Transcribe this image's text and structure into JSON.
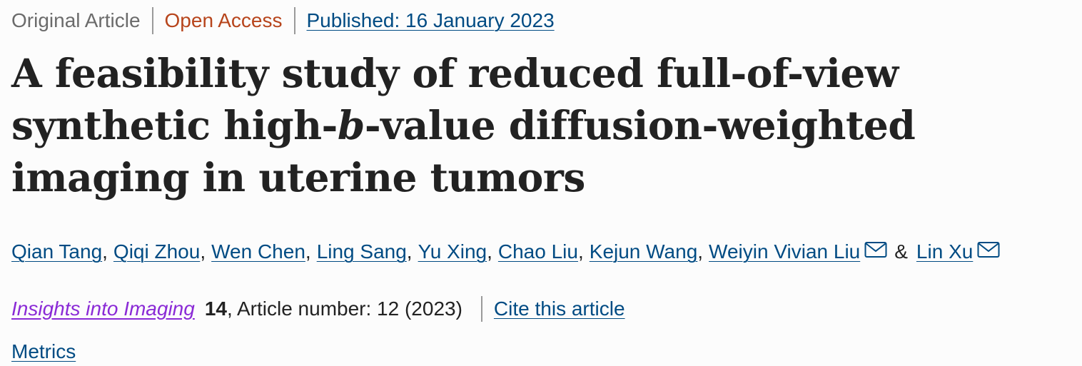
{
  "header": {
    "article_type": "Original Article",
    "access": "Open Access",
    "published": "Published: 16 January 2023"
  },
  "title": {
    "part1": "A feasibility study of reduced full-of-view synthetic high-",
    "italic": "b",
    "part2": "-value diffusion-weighted imaging in uterine tumors"
  },
  "authors": [
    {
      "name": "Qian Tang",
      "email": false
    },
    {
      "name": "Qiqi Zhou",
      "email": false
    },
    {
      "name": "Wen Chen",
      "email": false
    },
    {
      "name": "Ling Sang",
      "email": false
    },
    {
      "name": "Yu Xing",
      "email": false
    },
    {
      "name": "Chao Liu",
      "email": false
    },
    {
      "name": "Kejun Wang",
      "email": false
    },
    {
      "name": "Weiyin Vivian Liu",
      "email": true
    },
    {
      "name": "Lin Xu",
      "email": true
    }
  ],
  "author_separator": ",",
  "author_last_joiner": "&",
  "citation": {
    "journal": "Insights into Imaging",
    "volume": "14",
    "article_number": ", Article number: 12 (2023)",
    "cite_link": "Cite this article"
  },
  "metrics": "Metrics",
  "icons": {
    "email": "mail-icon"
  },
  "colors": {
    "link": "#004b83",
    "open_access": "#b7451c",
    "journal": "#8a2ad6",
    "muted": "#6b6b6b"
  }
}
